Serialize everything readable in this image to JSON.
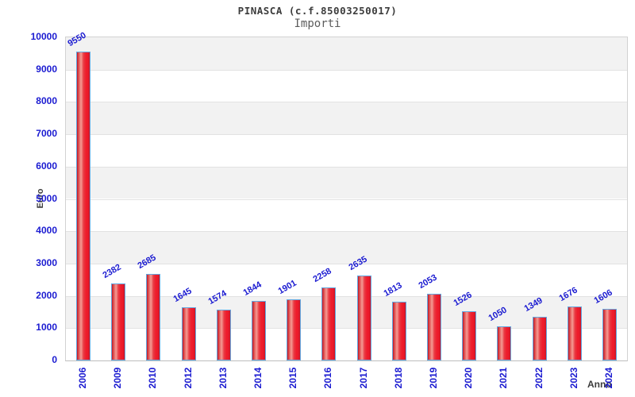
{
  "header": {
    "title": "PINASCA (c.f.85003250017)",
    "subtitle": "Importi"
  },
  "chart_data": {
    "type": "bar",
    "title": "PINASCA (c.f.85003250017)",
    "subtitle": "Importi",
    "xlabel": "Anno",
    "ylabel": "Euro",
    "categories": [
      "2006",
      "2009",
      "2010",
      "2012",
      "2013",
      "2014",
      "2015",
      "2016",
      "2017",
      "2018",
      "2019",
      "2020",
      "2021",
      "2022",
      "2023",
      "2024"
    ],
    "values": [
      9550,
      2382,
      2685,
      1645,
      1574,
      1844,
      1901,
      2258,
      2635,
      1813,
      2053,
      1526,
      1050,
      1349,
      1676,
      1606
    ],
    "ylim": [
      0,
      10000
    ],
    "ytick_step": 1000,
    "yticks": [
      0,
      1000,
      2000,
      3000,
      4000,
      5000,
      6000,
      7000,
      8000,
      9000,
      10000
    ],
    "grid": "alternating-horizontal-bands",
    "legend": "none",
    "colors": {
      "bar_fill_main": "#ee1b2b",
      "bar_fill_highlight": "#f49b94",
      "bar_fill_edge": "#c11828",
      "bar_border": "#64a8e0",
      "tick_label_blue": "#1b1bd1",
      "value_label_blue": "#1b1bd1",
      "band_gray": "#f2f2f2",
      "band_white": "#ffffff",
      "gridline": "#e2e2e2",
      "title_gray": "#3c3c3c",
      "subtitle_gray": "#5c5c5c"
    }
  }
}
